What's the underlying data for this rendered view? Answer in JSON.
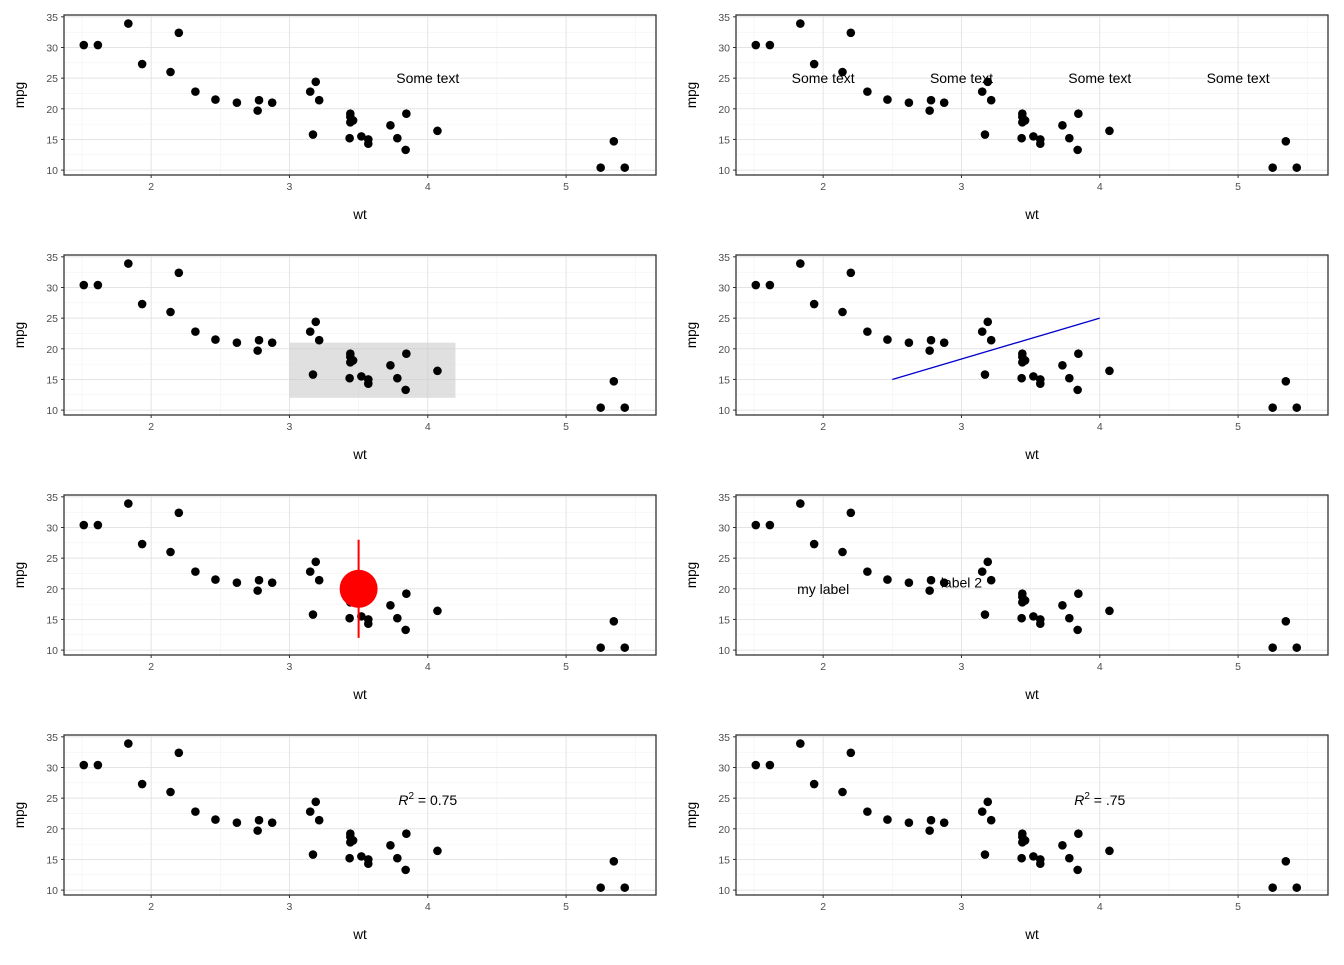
{
  "chart_data": {
    "type": "scatter",
    "layout": "4 rows x 2 columns",
    "shared": {
      "xlabel": "wt",
      "ylabel": "mpg",
      "x_ticks": [
        2,
        3,
        4,
        5
      ],
      "y_ticks": [
        10,
        15,
        20,
        25,
        30,
        35
      ],
      "xlim": [
        1.37,
        5.65
      ],
      "ylim": [
        9.2,
        35.3
      ],
      "grid": true,
      "point_color": "#000000",
      "points": [
        {
          "x": 2.62,
          "y": 21.0
        },
        {
          "x": 2.875,
          "y": 21.0
        },
        {
          "x": 2.32,
          "y": 22.8
        },
        {
          "x": 3.215,
          "y": 21.4
        },
        {
          "x": 3.44,
          "y": 18.7
        },
        {
          "x": 3.46,
          "y": 18.1
        },
        {
          "x": 3.57,
          "y": 14.3
        },
        {
          "x": 3.19,
          "y": 24.4
        },
        {
          "x": 3.15,
          "y": 22.8
        },
        {
          "x": 3.44,
          "y": 19.2
        },
        {
          "x": 3.44,
          "y": 17.8
        },
        {
          "x": 4.07,
          "y": 16.4
        },
        {
          "x": 3.73,
          "y": 17.3
        },
        {
          "x": 3.78,
          "y": 15.2
        },
        {
          "x": 5.25,
          "y": 10.4
        },
        {
          "x": 5.424,
          "y": 10.4
        },
        {
          "x": 5.345,
          "y": 14.7
        },
        {
          "x": 2.2,
          "y": 32.4
        },
        {
          "x": 1.615,
          "y": 30.4
        },
        {
          "x": 1.835,
          "y": 33.9
        },
        {
          "x": 2.465,
          "y": 21.5
        },
        {
          "x": 3.52,
          "y": 15.5
        },
        {
          "x": 3.435,
          "y": 15.2
        },
        {
          "x": 3.84,
          "y": 13.3
        },
        {
          "x": 3.845,
          "y": 19.2
        },
        {
          "x": 1.935,
          "y": 27.3
        },
        {
          "x": 2.14,
          "y": 26.0
        },
        {
          "x": 1.513,
          "y": 30.4
        },
        {
          "x": 3.17,
          "y": 15.8
        },
        {
          "x": 2.77,
          "y": 19.7
        },
        {
          "x": 3.57,
          "y": 15.0
        },
        {
          "x": 2.78,
          "y": 21.4
        }
      ]
    },
    "panels": [
      {
        "annotations": [
          {
            "kind": "text",
            "x": 4.0,
            "y": 25.0,
            "text": "Some text"
          }
        ]
      },
      {
        "annotations": [
          {
            "kind": "text",
            "x": 2.0,
            "y": 25.0,
            "text": "Some text"
          },
          {
            "kind": "text",
            "x": 3.0,
            "y": 25.0,
            "text": "Some text"
          },
          {
            "kind": "text",
            "x": 4.0,
            "y": 25.0,
            "text": "Some text"
          },
          {
            "kind": "text",
            "x": 5.0,
            "y": 25.0,
            "text": "Some text"
          }
        ]
      },
      {
        "annotations": [
          {
            "kind": "rect",
            "xmin": 3.0,
            "xmax": 4.2,
            "ymin": 12.0,
            "ymax": 21.0,
            "fill": "#cccccc",
            "alpha": 0.6
          }
        ]
      },
      {
        "annotations": [
          {
            "kind": "segment",
            "x": 2.5,
            "xend": 4.0,
            "y": 15.0,
            "yend": 25.0,
            "color": "#0000cc"
          }
        ]
      },
      {
        "annotations": [
          {
            "kind": "pointrange",
            "x": 3.5,
            "y": 20.0,
            "ymin": 12.0,
            "ymax": 28.0,
            "color": "#ff0000"
          }
        ]
      },
      {
        "annotations": [
          {
            "kind": "text",
            "x": 2.0,
            "y": 20.0,
            "text": "my label"
          },
          {
            "kind": "text",
            "x": 3.0,
            "y": 21.0,
            "text": "label 2"
          }
        ]
      },
      {
        "annotations": [
          {
            "kind": "rsq",
            "x": 4.0,
            "y": 24.7,
            "label": "R",
            "exponent": "2",
            "value": " = 0.75"
          }
        ]
      },
      {
        "annotations": [
          {
            "kind": "rsq",
            "x": 4.0,
            "y": 24.7,
            "label": "R",
            "exponent": "2",
            "value": " = .75"
          }
        ]
      }
    ]
  }
}
